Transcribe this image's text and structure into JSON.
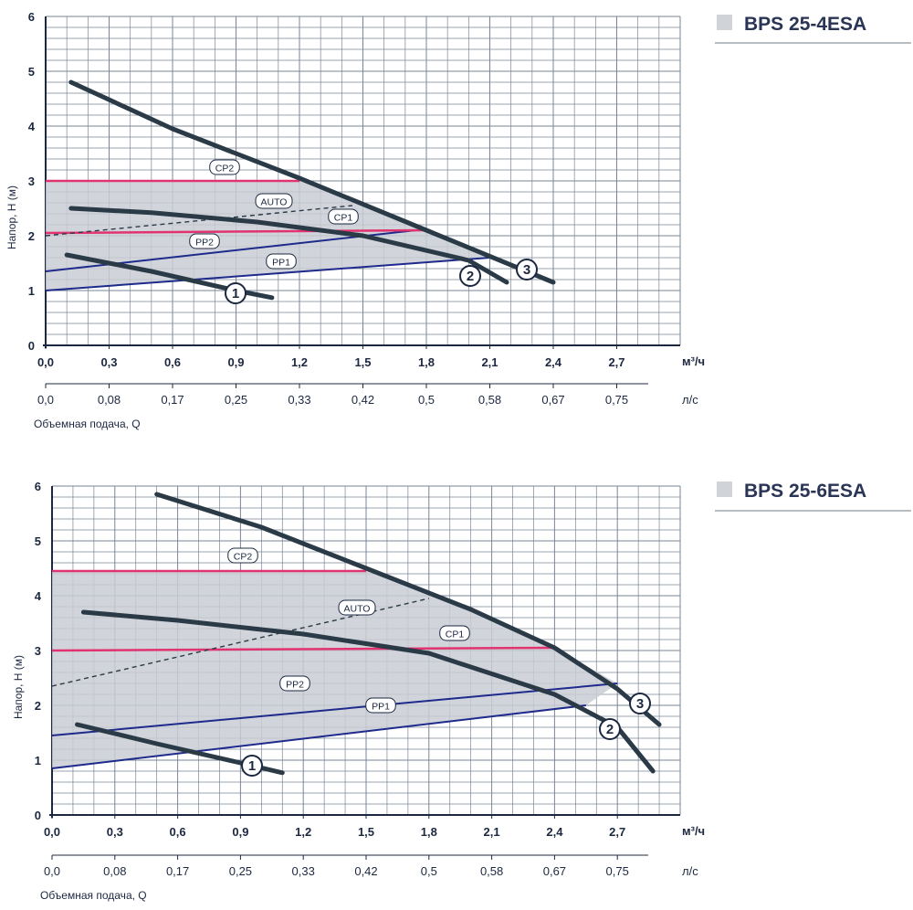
{
  "charts": [
    {
      "model": "BPS 25-4ESA",
      "x_unit": "м³/ч",
      "x_ticks": [
        "0,0",
        "0,3",
        "0,6",
        "0,9",
        "1,2",
        "1,5",
        "1,8",
        "2,1",
        "2,4",
        "2,7"
      ],
      "x2_unit": "л/с",
      "x2_ticks": [
        "0,0",
        "0,08",
        "0,17",
        "0,25",
        "0,33",
        "0,42",
        "0,5",
        "0,58",
        "0,67",
        "0,75"
      ],
      "y_label": "Напор, H (м)",
      "y_ticks": [
        "0",
        "1",
        "2",
        "3",
        "4",
        "5",
        "6"
      ],
      "x_label": "Объемная подача, Q",
      "tags": {
        "cp2": "CP2",
        "auto": "AUTO",
        "cp1": "CP1",
        "pp2": "PP2",
        "pp1": "PP1"
      },
      "curve_labels": {
        "c1": "1",
        "c2": "2",
        "c3": "3"
      }
    },
    {
      "model": "BPS 25-6ESA",
      "x_unit": "м³/ч",
      "x_ticks": [
        "0,0",
        "0,3",
        "0,6",
        "0,9",
        "1,2",
        "1,5",
        "1,8",
        "2,1",
        "2,4",
        "2,7"
      ],
      "x2_unit": "л/с",
      "x2_ticks": [
        "0,0",
        "0,08",
        "0,17",
        "0,25",
        "0,33",
        "0,42",
        "0,5",
        "0,58",
        "0,67",
        "0,75"
      ],
      "y_label": "Напор, H (м)",
      "y_ticks": [
        "0",
        "1",
        "2",
        "3",
        "4",
        "5",
        "6"
      ],
      "x_label": "Объемная подача, Q",
      "tags": {
        "cp2": "CP2",
        "auto": "AUTO",
        "cp1": "CP1",
        "pp2": "PP2",
        "pp1": "PP1"
      },
      "curve_labels": {
        "c1": "1",
        "c2": "2",
        "c3": "3"
      }
    }
  ],
  "colors": {
    "grid": "#7a8596",
    "curve": "#2b3a47",
    "pink": "#e0336f",
    "blue": "#1e2a8c",
    "shade": "#c9cdd3",
    "model_square": "#d0d3d8"
  },
  "chart_data": [
    {
      "type": "line",
      "title": "BPS 25-4ESA",
      "xlabel": "Объемная подача, Q",
      "x_unit": "м³/ч",
      "ylabel": "Напор, H (м)",
      "xlim": [
        0,
        3.0
      ],
      "ylim": [
        0,
        6
      ],
      "grid": true,
      "series": [
        {
          "name": "1",
          "x": [
            0.1,
            0.5,
            0.9,
            1.07
          ],
          "y": [
            1.65,
            1.35,
            1.0,
            0.87
          ]
        },
        {
          "name": "2",
          "x": [
            0.12,
            0.5,
            1.0,
            1.5,
            2.0,
            2.18
          ],
          "y": [
            2.5,
            2.42,
            2.25,
            2.0,
            1.55,
            1.15
          ]
        },
        {
          "name": "3",
          "x": [
            0.12,
            0.6,
            1.2,
            1.8,
            2.4
          ],
          "y": [
            4.8,
            3.95,
            3.05,
            2.1,
            1.15
          ]
        },
        {
          "name": "CP2",
          "x": [
            0.0,
            1.2
          ],
          "y": [
            3.0,
            3.0
          ]
        },
        {
          "name": "CP1",
          "x": [
            0.0,
            1.8
          ],
          "y": [
            2.05,
            2.1
          ]
        },
        {
          "name": "AUTO",
          "x": [
            0.0,
            1.45
          ],
          "y": [
            2.0,
            2.55
          ]
        },
        {
          "name": "PP2",
          "x": [
            0.0,
            1.75
          ],
          "y": [
            1.35,
            2.1
          ]
        },
        {
          "name": "PP1",
          "x": [
            0.0,
            2.1
          ],
          "y": [
            1.0,
            1.6
          ]
        }
      ]
    },
    {
      "type": "line",
      "title": "BPS 25-6ESA",
      "xlabel": "Объемная подача, Q",
      "x_unit": "м³/ч",
      "ylabel": "Напор, H (м)",
      "xlim": [
        0,
        3.0
      ],
      "ylim": [
        0,
        6
      ],
      "grid": true,
      "series": [
        {
          "name": "1",
          "x": [
            0.12,
            0.5,
            0.9,
            1.1
          ],
          "y": [
            1.65,
            1.3,
            0.95,
            0.77
          ]
        },
        {
          "name": "2",
          "x": [
            0.15,
            0.6,
            1.2,
            1.8,
            2.4,
            2.7,
            2.87
          ],
          "y": [
            3.7,
            3.55,
            3.3,
            2.95,
            2.2,
            1.6,
            0.8
          ]
        },
        {
          "name": "3",
          "x": [
            0.5,
            1.0,
            1.5,
            2.0,
            2.4,
            2.7,
            2.9
          ],
          "y": [
            5.85,
            5.25,
            4.5,
            3.75,
            3.05,
            2.3,
            1.65
          ]
        },
        {
          "name": "CP2",
          "x": [
            0.0,
            1.5
          ],
          "y": [
            4.45,
            4.45
          ]
        },
        {
          "name": "CP1",
          "x": [
            0.0,
            2.4
          ],
          "y": [
            3.0,
            3.05
          ]
        },
        {
          "name": "AUTO",
          "x": [
            0.0,
            1.8
          ],
          "y": [
            2.35,
            3.95
          ]
        },
        {
          "name": "PP2",
          "x": [
            0.0,
            2.7
          ],
          "y": [
            1.45,
            2.4
          ]
        },
        {
          "name": "PP1",
          "x": [
            0.0,
            2.55
          ],
          "y": [
            0.85,
            2.0
          ]
        }
      ]
    }
  ]
}
